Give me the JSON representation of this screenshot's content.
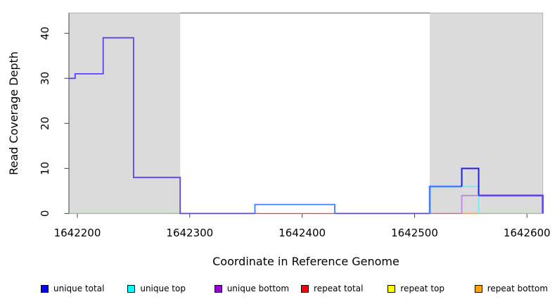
{
  "chart_data": {
    "type": "line",
    "subtype": "step-coverage-plot",
    "title": "",
    "xlabel": "Coordinate in Reference Genome",
    "ylabel": "Read Coverage Depth",
    "xlim": [
      1642192.5,
      1642614
    ],
    "ylim": [
      0,
      44.5
    ],
    "x_ticks": [
      1642200,
      1642300,
      1642400,
      1642500,
      1642600
    ],
    "y_ticks": [
      0,
      10,
      20,
      30,
      40
    ],
    "grid": false,
    "background_color": "#FFFFFF",
    "shade_color": "#DBDBDB",
    "frame_color": "#B3B3B3",
    "top_border_color": "#7A7A7A",
    "axis_color": "#444444",
    "shaded_regions": [
      {
        "name": "left-repeat-region",
        "x0": 1642192.5,
        "x1": 1642291.5
      },
      {
        "name": "right-repeat-region",
        "x0": 1642513.5,
        "x1": 1642614
      }
    ],
    "series": [
      {
        "name": "baseline-green-left",
        "color": "#8CC88C",
        "width": 1.4,
        "points": [
          [
            1642192.5,
            0
          ],
          [
            1642291.5,
            0
          ]
        ]
      },
      {
        "name": "baseline-red-mid",
        "color": "#E05050",
        "width": 1.4,
        "points": [
          [
            1642358,
            0
          ],
          [
            1642429,
            0
          ]
        ]
      },
      {
        "name": "baseline-pink-right",
        "color": "#D26490",
        "width": 1.4,
        "points": [
          [
            1642513.5,
            0
          ],
          [
            1642542,
            0
          ]
        ]
      },
      {
        "name": "baseline-orange-right",
        "color": "#FFA040",
        "width": 1.6,
        "points": [
          [
            1642542,
            0
          ],
          [
            1642557,
            0
          ]
        ]
      },
      {
        "name": "baseline-green-right",
        "color": "#8CC88C",
        "width": 1.4,
        "points": [
          [
            1642557,
            0
          ],
          [
            1642614,
            0
          ]
        ]
      },
      {
        "name": "unique-total-left-steps",
        "color": "#6240EE",
        "width": 1.8,
        "points": [
          [
            1642192.5,
            30
          ],
          [
            1642198,
            30
          ],
          [
            1642198,
            31
          ],
          [
            1642223,
            31
          ],
          [
            1642223,
            39
          ],
          [
            1642250,
            39
          ],
          [
            1642250,
            8
          ],
          [
            1642291.5,
            8
          ],
          [
            1642291.5,
            0
          ],
          [
            1642358,
            0
          ]
        ]
      },
      {
        "name": "baseline-violet-mid",
        "color": "#6240EE",
        "width": 1.8,
        "points": [
          [
            1642429,
            0
          ],
          [
            1642513.5,
            0
          ]
        ]
      },
      {
        "name": "unique-top-mid-box",
        "color": "#4080FF",
        "width": 1.8,
        "points": [
          [
            1642358,
            0
          ],
          [
            1642358,
            2
          ],
          [
            1642429,
            2
          ],
          [
            1642429,
            0
          ]
        ]
      },
      {
        "name": "unique-total-right-6",
        "color": "#4080FF",
        "width": 2.6,
        "points": [
          [
            1642513.5,
            0
          ],
          [
            1642513.5,
            6
          ],
          [
            1642542,
            6
          ]
        ]
      },
      {
        "name": "unique-bottom-right-4",
        "color": "#BE7EE6",
        "width": 1.6,
        "points": [
          [
            1642542,
            0
          ],
          [
            1642542,
            4
          ],
          [
            1642557,
            4
          ]
        ]
      },
      {
        "name": "unique-top-right-6",
        "color": "#77E8F0",
        "width": 1.8,
        "points": [
          [
            1642542,
            6
          ],
          [
            1642557,
            6
          ],
          [
            1642557,
            0
          ]
        ]
      },
      {
        "name": "unique-total-right-10",
        "color": "#2020DD",
        "width": 2.0,
        "points": [
          [
            1642542,
            6
          ],
          [
            1642542,
            10
          ],
          [
            1642557,
            10
          ],
          [
            1642557,
            4
          ]
        ]
      },
      {
        "name": "unique-total-right-4",
        "color": "#5F45EE",
        "width": 2.6,
        "points": [
          [
            1642557,
            4
          ],
          [
            1642614,
            4
          ],
          [
            1642614,
            0
          ]
        ]
      }
    ],
    "legend": [
      {
        "label": "unique total",
        "color": "#0000FF"
      },
      {
        "label": "unique top",
        "color": "#00FFFF"
      },
      {
        "label": "unique bottom",
        "color": "#9400D3"
      },
      {
        "label": "repeat total",
        "color": "#FF0000"
      },
      {
        "label": "repeat top",
        "color": "#FFFF00"
      },
      {
        "label": "repeat bottom",
        "color": "#FFA500"
      }
    ],
    "legend_position": "bottom"
  }
}
